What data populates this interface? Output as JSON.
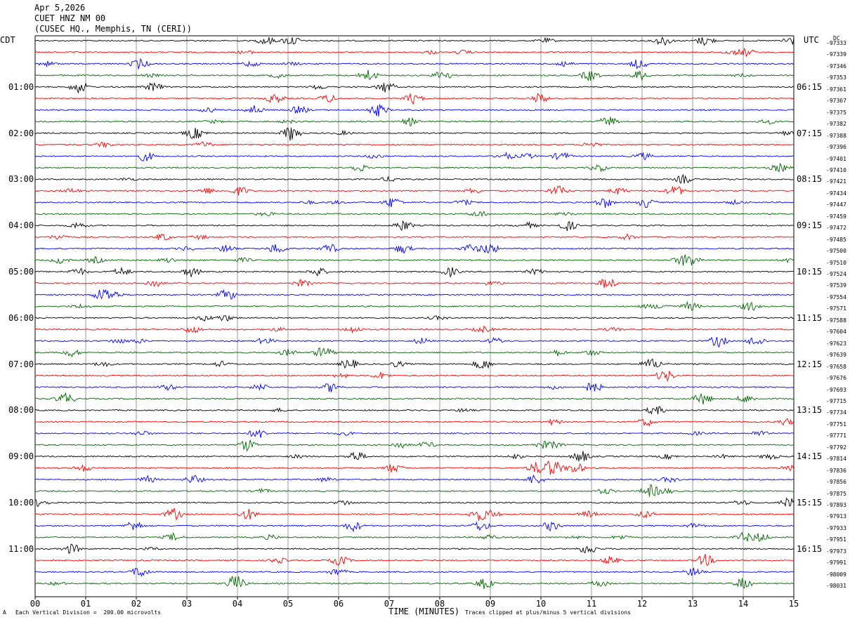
{
  "header": {
    "date": "Apr 5,2026",
    "station": "CUET HNZ NM 00",
    "location": "(CUSEC HQ., Memphis, TN (CERI))"
  },
  "left_tz": "CDT",
  "right_tz": "UTC",
  "footer": {
    "scale": "Each Vertical Division =  200.00 microvolts",
    "xlabel": "TIME (MINUTES)",
    "clip": "Traces clipped at plus/minus 5 vertical divisions",
    "mark": "A"
  },
  "chart_data": {
    "type": "line",
    "title": "CUET HNZ NM 00",
    "xlabel": "TIME (MINUTES)",
    "x_ticks": [
      "00",
      "01",
      "02",
      "03",
      "04",
      "05",
      "06",
      "07",
      "08",
      "09",
      "10",
      "11",
      "12",
      "13",
      "14",
      "15"
    ],
    "xlim": [
      0,
      15
    ],
    "trace_colors": [
      "#000000",
      "#ff0000",
      "#0000ff",
      "#006600"
    ],
    "left_hour_labels": [
      "01:00",
      "02:00",
      "03:00",
      "04:00",
      "05:00",
      "06:00",
      "07:00",
      "08:00",
      "09:00",
      "10:00",
      "11:00"
    ],
    "right_hour_labels": [
      "06:15",
      "07:15",
      "08:15",
      "09:15",
      "10:15",
      "11:15",
      "12:15",
      "13:15",
      "14:15",
      "15:15",
      "16:15"
    ],
    "trace_offsets": [
      "-97333",
      "-97339",
      "-97346",
      "-97353",
      "-97361",
      "-97367",
      "-97375",
      "-97382",
      "-97388",
      "-97396",
      "-97401",
      "-97410",
      "-97421",
      "-97434",
      "-97447",
      "-97459",
      "-97472",
      "-97485",
      "-97500",
      "-97510",
      "-97524",
      "-97539",
      "-97554",
      "-97571",
      "-97588",
      "-97604",
      "-97623",
      "-97639",
      "-97658",
      "-97676",
      "-97693",
      "-97715",
      "-97734",
      "-97751",
      "-97771",
      "-97792",
      "-97814",
      "-97836",
      "-97856",
      "-97875",
      "-97893",
      "-97913",
      "-97933",
      "-97951",
      "-97973",
      "-97991",
      "-98009",
      "-98031"
    ],
    "dc_label": "DC",
    "trace_count": 48,
    "trace_minutes": 15
  }
}
